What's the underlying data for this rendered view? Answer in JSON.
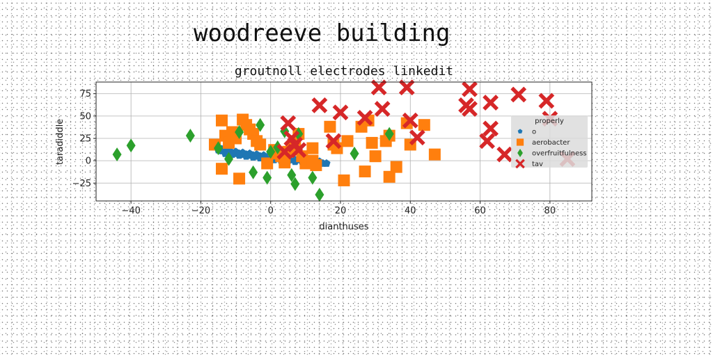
{
  "page": {
    "title": "woodreeve building"
  },
  "chart_data": {
    "type": "scatter",
    "title": "groutnoll electrodes linkedit",
    "xlabel": "dianthuses",
    "ylabel": "taradiddle",
    "xlim": [
      -50,
      92
    ],
    "ylim": [
      -45,
      88
    ],
    "xticks": [
      -40,
      -20,
      0,
      20,
      40,
      60,
      80
    ],
    "yticks": [
      -25,
      0,
      25,
      50,
      75
    ],
    "grid": true,
    "legend": {
      "title": "properly",
      "placement": "right"
    },
    "series": [
      {
        "name": "o",
        "color": "#1f77b4",
        "marker": "pentagon",
        "points": [
          [
            -15,
            12
          ],
          [
            -14,
            11
          ],
          [
            -13,
            10
          ],
          [
            -12,
            9
          ],
          [
            -11,
            9
          ],
          [
            -10,
            8
          ],
          [
            -9,
            8
          ],
          [
            -8,
            7
          ],
          [
            -7,
            7
          ],
          [
            -6,
            6
          ],
          [
            -5,
            6
          ],
          [
            -4,
            5
          ],
          [
            -3,
            5
          ],
          [
            -2,
            4
          ],
          [
            -1,
            4
          ],
          [
            0,
            3
          ],
          [
            1,
            3
          ],
          [
            2,
            3
          ],
          [
            3,
            2
          ],
          [
            4,
            2
          ],
          [
            5,
            2
          ],
          [
            6,
            1
          ],
          [
            7,
            1
          ],
          [
            8,
            1
          ],
          [
            9,
            0
          ],
          [
            10,
            0
          ],
          [
            11,
            -1
          ],
          [
            12,
            -1
          ],
          [
            13,
            -2
          ],
          [
            14,
            -2
          ],
          [
            15,
            -3
          ],
          [
            16,
            -3
          ],
          [
            -14,
            13
          ],
          [
            -12,
            11
          ],
          [
            -10,
            10
          ],
          [
            -8,
            9
          ],
          [
            -6,
            8
          ],
          [
            -4,
            7
          ],
          [
            -2,
            6
          ],
          [
            0,
            5
          ],
          [
            2,
            4
          ],
          [
            4,
            3
          ],
          [
            6,
            2
          ],
          [
            8,
            2
          ],
          [
            10,
            1
          ],
          [
            12,
            0
          ],
          [
            14,
            -1
          ],
          [
            -13,
            8
          ],
          [
            -11,
            7
          ],
          [
            -9,
            6
          ],
          [
            -7,
            5
          ],
          [
            -5,
            4
          ],
          [
            -3,
            3
          ],
          [
            -1,
            2
          ],
          [
            1,
            1
          ],
          [
            3,
            0
          ],
          [
            5,
            0
          ],
          [
            7,
            -1
          ],
          [
            9,
            -1
          ],
          [
            11,
            -2
          ],
          [
            13,
            -3
          ]
        ]
      },
      {
        "name": "aerobacter",
        "color": "#ff7f0e",
        "marker": "square",
        "points": [
          [
            -16,
            18
          ],
          [
            -14,
            45
          ],
          [
            -13,
            28
          ],
          [
            -12,
            20
          ],
          [
            -11,
            32
          ],
          [
            -10,
            25
          ],
          [
            -8,
            46
          ],
          [
            -7,
            40
          ],
          [
            -6,
            35
          ],
          [
            -5,
            30
          ],
          [
            -4,
            22
          ],
          [
            -3,
            18
          ],
          [
            -14,
            -9
          ],
          [
            -9,
            -20
          ],
          [
            -1,
            -3
          ],
          [
            1,
            12
          ],
          [
            2,
            8
          ],
          [
            3,
            5
          ],
          [
            4,
            -2
          ],
          [
            5,
            10
          ],
          [
            6,
            15
          ],
          [
            7,
            22
          ],
          [
            8,
            30
          ],
          [
            9,
            5
          ],
          [
            10,
            -3
          ],
          [
            12,
            14
          ],
          [
            12,
            0
          ],
          [
            13,
            -5
          ],
          [
            17,
            38
          ],
          [
            18,
            18
          ],
          [
            19,
            14
          ],
          [
            21,
            -22
          ],
          [
            22,
            22
          ],
          [
            26,
            38
          ],
          [
            27,
            -12
          ],
          [
            28,
            45
          ],
          [
            29,
            20
          ],
          [
            30,
            5
          ],
          [
            33,
            22
          ],
          [
            34,
            28
          ],
          [
            34,
            -18
          ],
          [
            36,
            -7
          ],
          [
            39,
            42
          ],
          [
            40,
            18
          ],
          [
            44,
            40
          ],
          [
            47,
            7
          ]
        ]
      },
      {
        "name": "overfruitfulness",
        "color": "#2ca02c",
        "marker": "diamond",
        "points": [
          [
            -44,
            7
          ],
          [
            -40,
            17
          ],
          [
            -23,
            28
          ],
          [
            -15,
            14
          ],
          [
            -12,
            2
          ],
          [
            -9,
            32
          ],
          [
            -5,
            -13
          ],
          [
            -3,
            40
          ],
          [
            -1,
            -19
          ],
          [
            0,
            10
          ],
          [
            2,
            15
          ],
          [
            4,
            33
          ],
          [
            6,
            -16
          ],
          [
            7,
            -26
          ],
          [
            8,
            30
          ],
          [
            12,
            -19
          ],
          [
            14,
            -38
          ],
          [
            24,
            8
          ],
          [
            34,
            30
          ]
        ]
      },
      {
        "name": "tav",
        "color": "#d62728",
        "marker": "x",
        "points": [
          [
            4,
            10
          ],
          [
            5,
            42
          ],
          [
            6,
            25
          ],
          [
            7,
            18
          ],
          [
            8,
            12
          ],
          [
            14,
            62
          ],
          [
            18,
            22
          ],
          [
            20,
            54
          ],
          [
            27,
            48
          ],
          [
            31,
            82
          ],
          [
            32,
            58
          ],
          [
            39,
            82
          ],
          [
            40,
            45
          ],
          [
            42,
            26
          ],
          [
            56,
            62
          ],
          [
            57,
            80
          ],
          [
            57,
            58
          ],
          [
            62,
            22
          ],
          [
            63,
            36
          ],
          [
            63,
            65
          ],
          [
            67,
            7
          ],
          [
            71,
            74
          ],
          [
            79,
            67
          ],
          [
            80,
            47
          ],
          [
            85,
            2
          ]
        ]
      }
    ]
  }
}
